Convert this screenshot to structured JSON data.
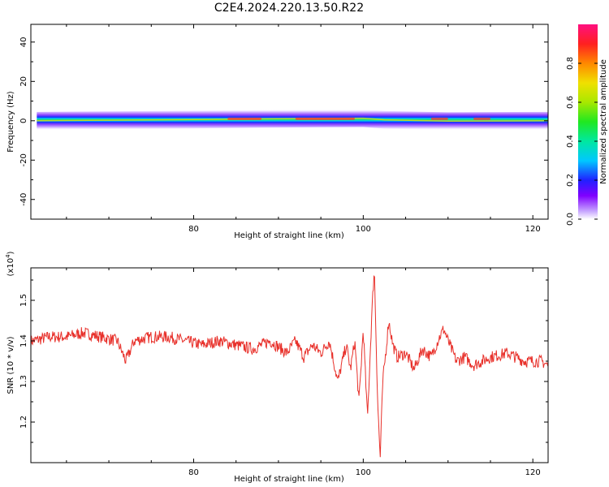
{
  "title": "C2E4.2024.220.13.50.R22",
  "chart_data": [
    {
      "type": "heatmap",
      "xlabel": "Height of straight line (km)",
      "ylabel": "Frequency (Hz)",
      "xlim": [
        60.8,
        121.8
      ],
      "ylim": [
        -50,
        49
      ],
      "x_ticks": [
        80,
        100,
        120
      ],
      "y_ticks": [
        -40,
        -20,
        0,
        20,
        40
      ],
      "band_center_hz": [
        {
          "x": 61.5,
          "y": 0
        },
        {
          "x": 70,
          "y": 0.3
        },
        {
          "x": 80,
          "y": 0.6
        },
        {
          "x": 88,
          "y": 1.0
        },
        {
          "x": 95,
          "y": 1.2
        },
        {
          "x": 100,
          "y": 1.3
        },
        {
          "x": 102.5,
          "y": 0.5
        },
        {
          "x": 110,
          "y": -0.2
        },
        {
          "x": 121.8,
          "y": 0
        }
      ],
      "colorbar": {
        "label": "Normalized spectral amplitude",
        "ticks": [
          "0.0",
          "0.2",
          "0.4",
          "0.6",
          "0.8"
        ],
        "range": [
          0,
          1
        ]
      }
    },
    {
      "type": "line",
      "xlabel": "Height of straight line (km)",
      "ylabel": "SNR (10 * v/v)",
      "y_multiplier": "(x10",
      "y_multiplier_exp": "4",
      "y_multiplier_close": ")",
      "xlim": [
        60.8,
        121.8
      ],
      "ylim": [
        1.1,
        1.58
      ],
      "x_ticks": [
        80,
        100,
        120
      ],
      "y_ticks": [
        "1.2",
        "1.3",
        "1.4",
        "1.5"
      ],
      "series": [
        {
          "color": "#e8302a",
          "x": [
            61,
            63,
            65,
            67,
            69,
            71,
            72,
            73,
            75,
            77,
            79,
            81,
            83,
            85,
            87,
            89,
            91,
            92,
            93,
            94,
            95,
            96,
            97,
            98,
            98.5,
            99,
            99.5,
            100,
            100.5,
            101,
            101.3,
            101.7,
            102,
            102.3,
            102.7,
            103,
            103.5,
            104,
            105,
            106,
            107,
            108,
            109,
            109.5,
            110,
            111,
            112,
            113,
            115,
            117,
            119,
            121,
            121.8
          ],
          "y": [
            1.4,
            1.41,
            1.41,
            1.42,
            1.41,
            1.4,
            1.35,
            1.4,
            1.41,
            1.41,
            1.4,
            1.39,
            1.4,
            1.39,
            1.38,
            1.4,
            1.37,
            1.4,
            1.36,
            1.39,
            1.37,
            1.4,
            1.3,
            1.39,
            1.33,
            1.4,
            1.25,
            1.43,
            1.21,
            1.46,
            1.58,
            1.25,
            1.11,
            1.3,
            1.38,
            1.45,
            1.39,
            1.36,
            1.37,
            1.33,
            1.38,
            1.36,
            1.41,
            1.43,
            1.4,
            1.35,
            1.36,
            1.34,
            1.36,
            1.37,
            1.35,
            1.35,
            1.34
          ]
        }
      ]
    }
  ]
}
